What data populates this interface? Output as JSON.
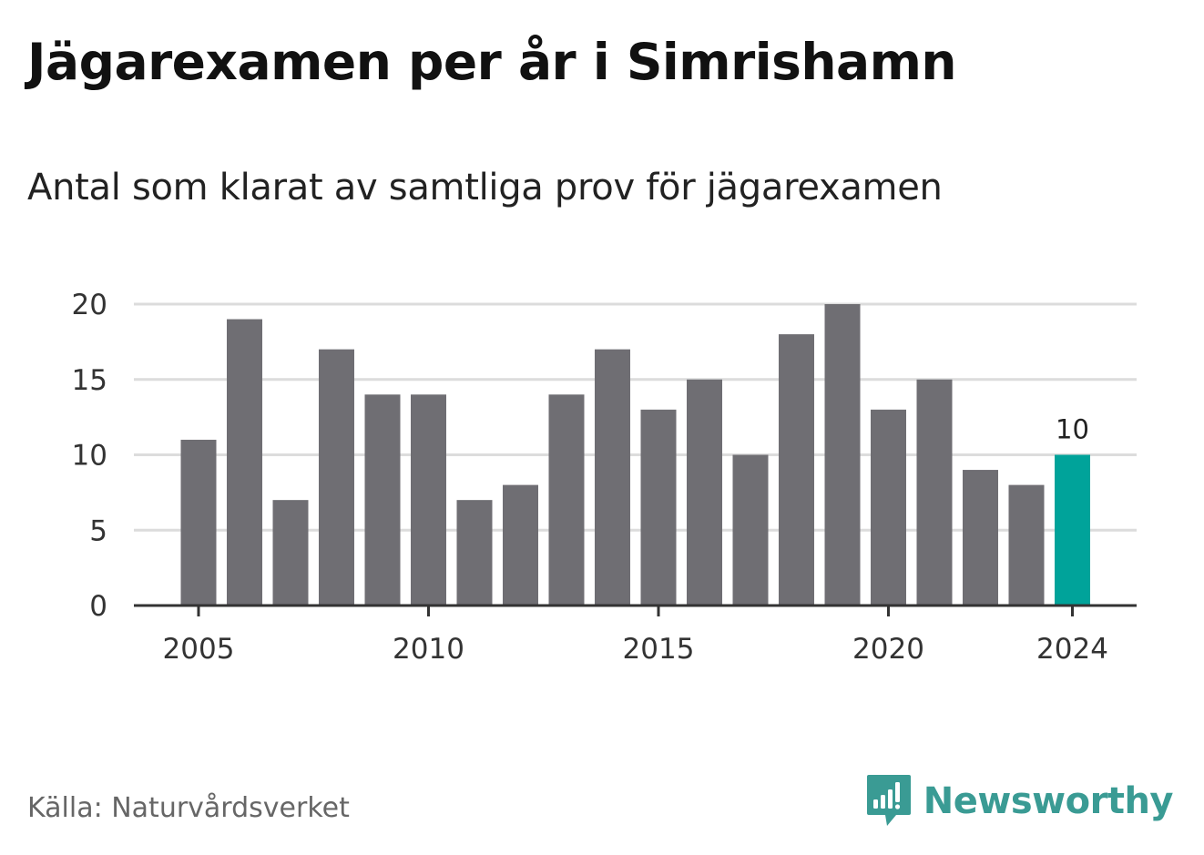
{
  "title": "Jägarexamen per år i Simrishamn",
  "subtitle": "Antal som klarat av samtliga prov för jägarexamen",
  "source": "Källa: Naturvårdsverket",
  "brand": {
    "name": "Newsworthy",
    "icon": "newsworthy-logo-icon"
  },
  "colors": {
    "bar": "#6f6e73",
    "highlight": "#00a39a",
    "grid": "#dcdcdc",
    "axis": "#333333",
    "brand": "#3a9b94"
  },
  "chart_data": {
    "type": "bar",
    "categories": [
      "2005",
      "2006",
      "2007",
      "2008",
      "2009",
      "2010",
      "2011",
      "2012",
      "2013",
      "2014",
      "2015",
      "2016",
      "2017",
      "2018",
      "2019",
      "2020",
      "2021",
      "2022",
      "2023",
      "2024"
    ],
    "values": [
      11,
      19,
      7,
      17,
      14,
      14,
      7,
      8,
      14,
      17,
      13,
      15,
      10,
      18,
      20,
      13,
      15,
      9,
      8,
      10
    ],
    "highlight": "2024",
    "highlight_label": "10",
    "x_ticks": [
      "2005",
      "2010",
      "2015",
      "2020",
      "2024"
    ],
    "y_ticks": [
      0,
      5,
      10,
      15,
      20
    ],
    "ylim": [
      0,
      20
    ],
    "grid": true,
    "xlabel": "",
    "ylabel": ""
  }
}
